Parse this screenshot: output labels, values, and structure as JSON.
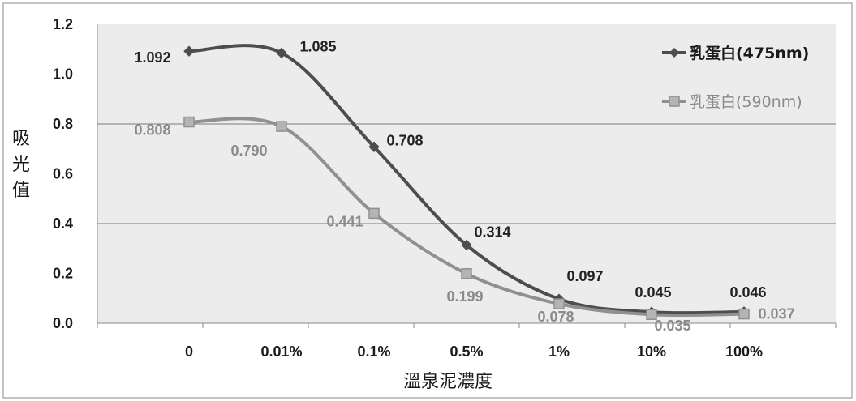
{
  "chart_data": {
    "type": "line",
    "title": "",
    "xlabel": "溫泉泥濃度",
    "ylabel": "吸光值",
    "categories": [
      "0",
      "0.01%",
      "0.1%",
      "0.5%",
      "1%",
      "10%",
      "100%"
    ],
    "ylim": [
      0,
      1.2
    ],
    "yticks": [
      "0.0",
      "0.2",
      "0.4",
      "0.6",
      "0.8",
      "1.0",
      "1.2"
    ],
    "grid": true,
    "legend_position": "top-right",
    "series": [
      {
        "name": "乳蛋白(475nm)",
        "values": [
          1.092,
          1.085,
          0.708,
          0.314,
          0.097,
          0.045,
          0.046
        ],
        "labels": [
          "1.092",
          "1.085",
          "0.708",
          "0.314",
          "0.097",
          "0.045",
          "0.046"
        ],
        "color": "#4d4d4d",
        "marker": "diamond"
      },
      {
        "name": "乳蛋白(590nm)",
        "values": [
          0.808,
          0.79,
          0.441,
          0.199,
          0.078,
          0.035,
          0.037
        ],
        "labels": [
          "0.808",
          "0.790",
          "0.441",
          "0.199",
          "0.078",
          "0.035",
          "0.037"
        ],
        "color": "#909090",
        "marker": "square"
      }
    ]
  }
}
